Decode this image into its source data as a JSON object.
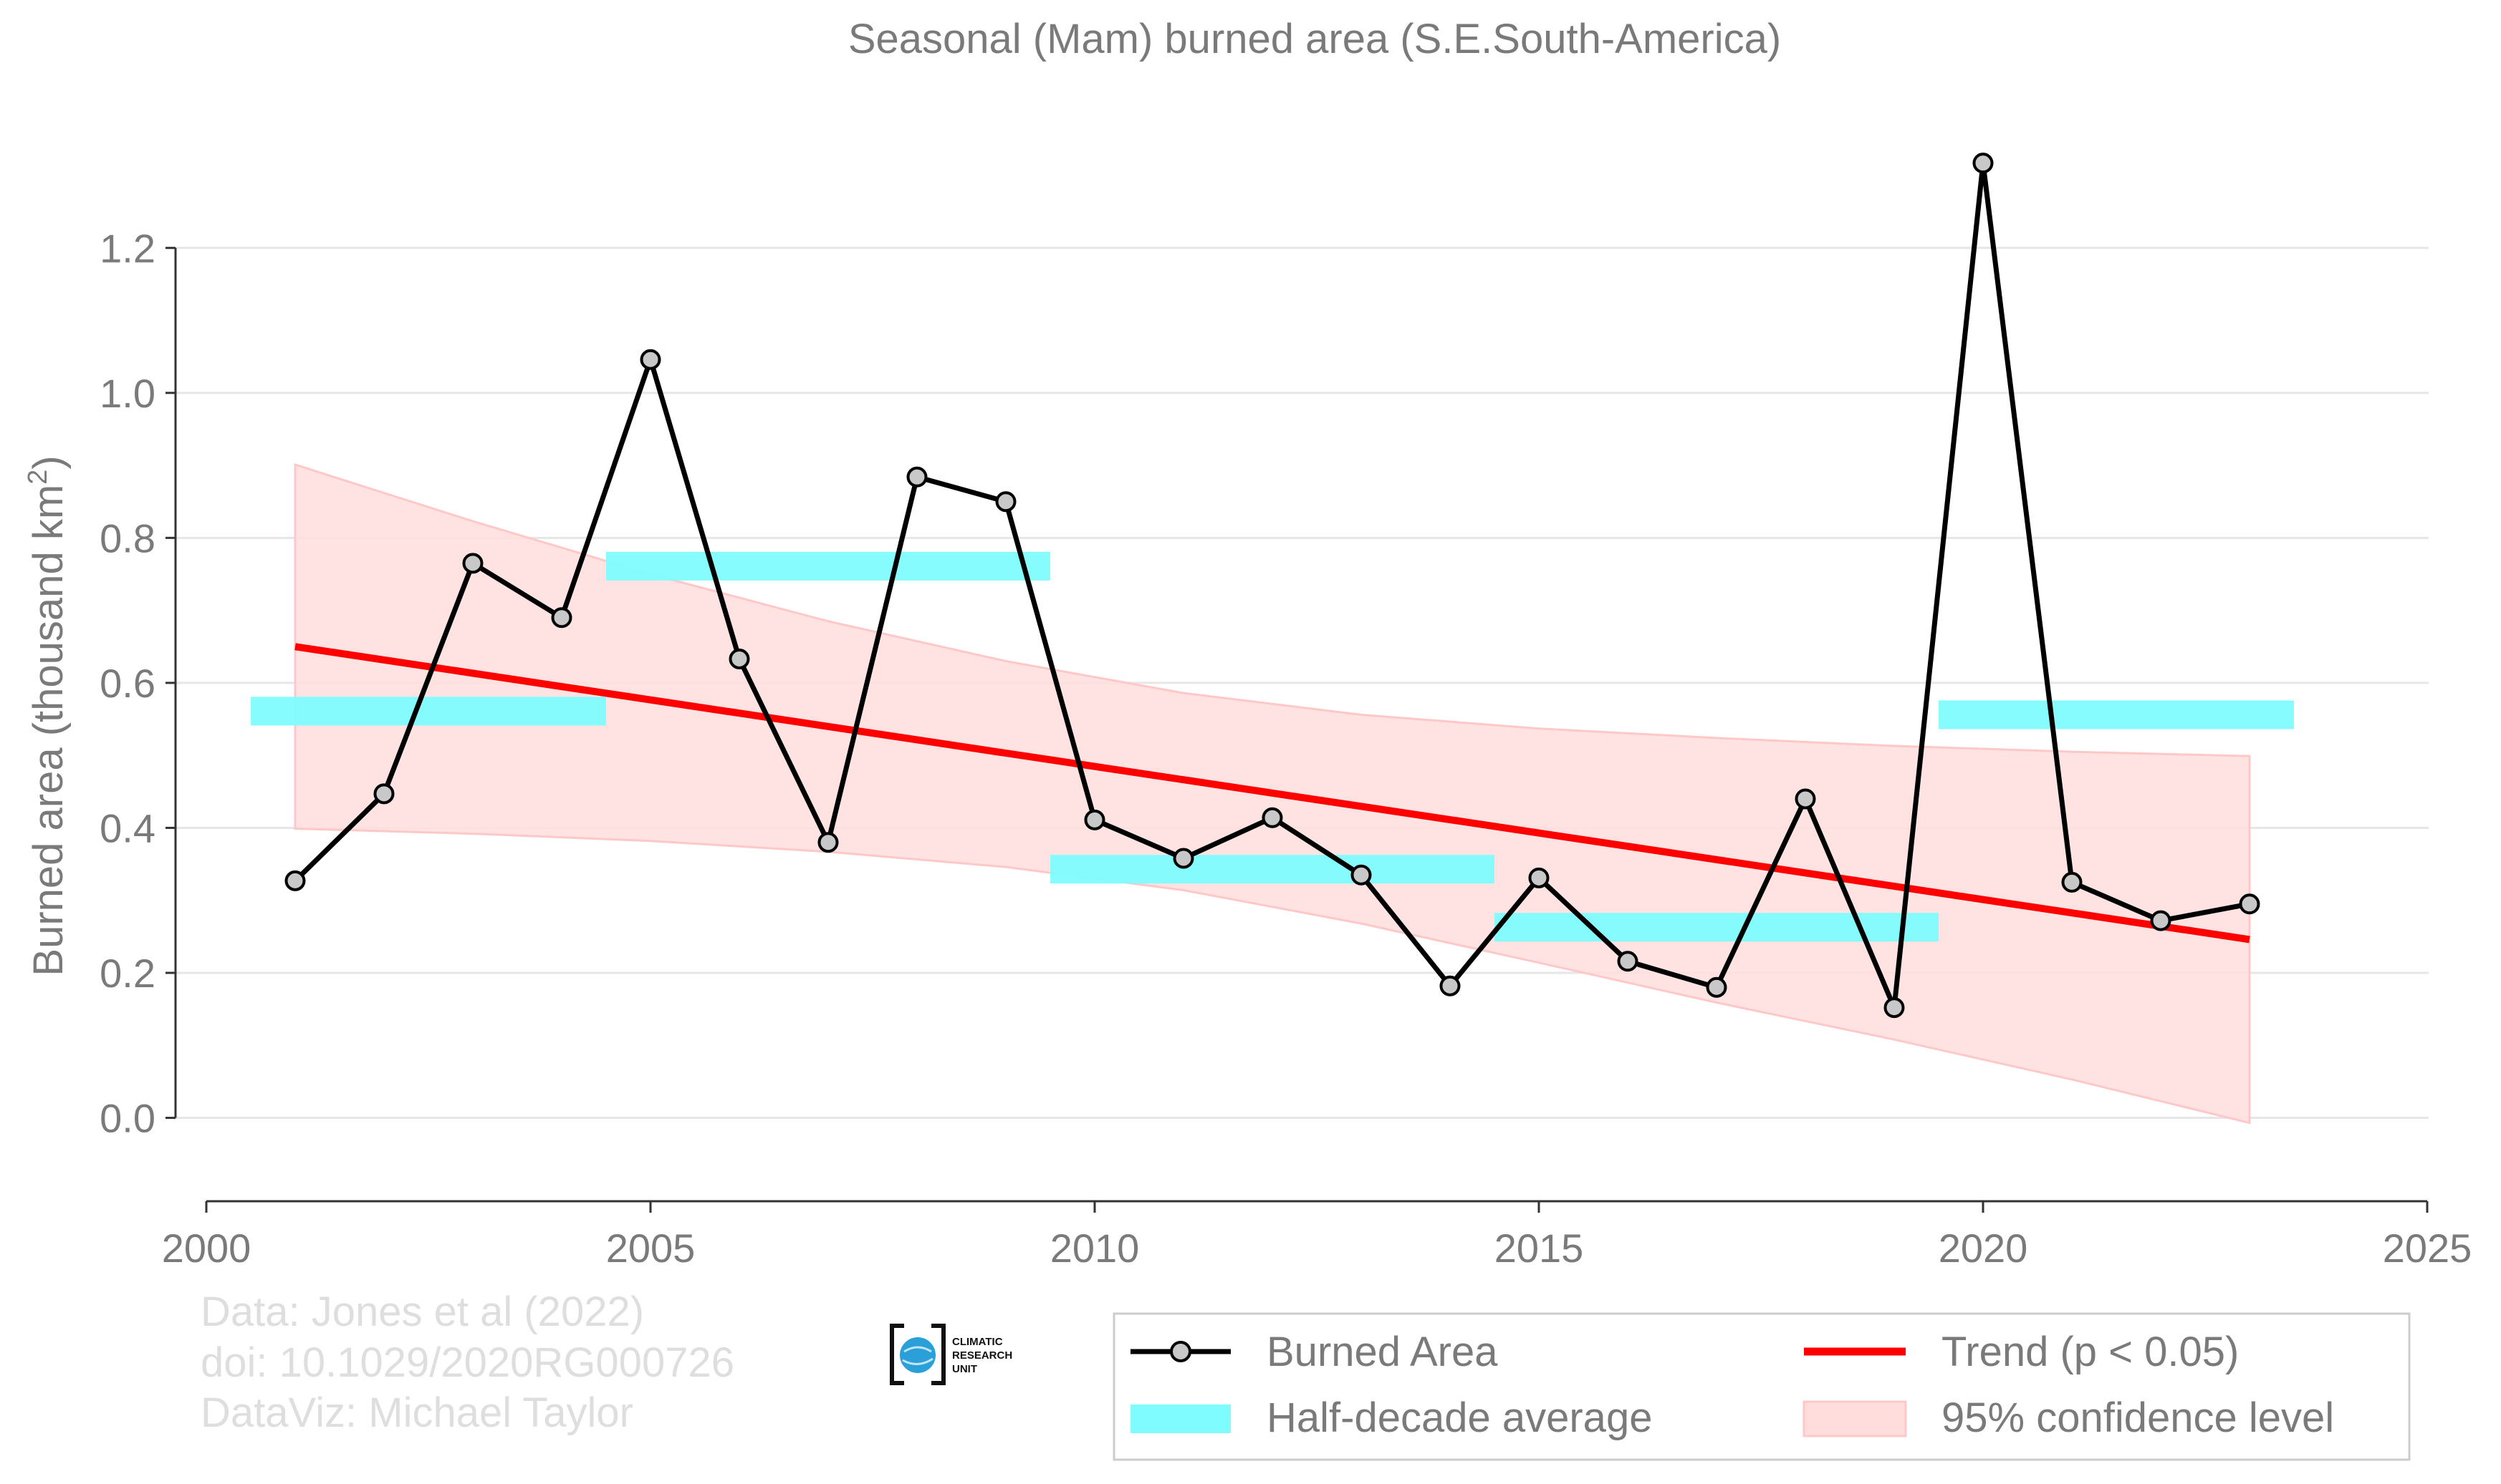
{
  "chart_data": {
    "type": "line",
    "title": "Seasonal (Mam) burned area (S.E.South-America)",
    "xlabel": "",
    "ylabel": "Burned area (thousand km",
    "ylabel_superscript": "2",
    "ylabel_suffix": ")",
    "xlim": [
      2000,
      2025
    ],
    "ylim": [
      -0.115,
      1.38
    ],
    "x_ticks": [
      2000,
      2005,
      2010,
      2015,
      2020,
      2025
    ],
    "y_ticks": [
      0.0,
      0.2,
      0.4,
      0.6,
      0.8,
      1.0,
      1.2
    ],
    "y_tick_labels": [
      "0.0",
      "0.2",
      "0.4",
      "0.6",
      "0.8",
      "1.0",
      "1.2"
    ],
    "grid": "horizontal",
    "legend_position": "bottom-right",
    "series": [
      {
        "name": "Burned Area",
        "color": "#000000",
        "marker_fill": "#c8c8c8",
        "x": [
          2001,
          2002,
          2003,
          2004,
          2005,
          2006,
          2007,
          2008,
          2009,
          2010,
          2011,
          2012,
          2013,
          2014,
          2015,
          2016,
          2017,
          2018,
          2019,
          2020,
          2021,
          2022,
          2023
        ],
        "values": [
          0.327,
          0.447,
          0.765,
          0.69,
          1.046,
          0.633,
          0.38,
          0.884,
          0.85,
          0.411,
          0.358,
          0.414,
          0.335,
          0.182,
          0.331,
          0.216,
          0.18,
          0.44,
          0.152,
          1.317,
          0.325,
          0.272,
          0.295
        ]
      },
      {
        "name": "Half-decade average",
        "color": "#7ffcff",
        "segments": [
          {
            "x_start": 2000.5,
            "x_end": 2004.5,
            "value": 0.561
          },
          {
            "x_start": 2004.5,
            "x_end": 2009.5,
            "value": 0.761
          },
          {
            "x_start": 2009.5,
            "x_end": 2014.5,
            "value": 0.343
          },
          {
            "x_start": 2014.5,
            "x_end": 2019.5,
            "value": 0.263
          },
          {
            "x_start": 2019.5,
            "x_end": 2023.5,
            "value": 0.556
          }
        ]
      },
      {
        "name": "Trend (p < 0.05)",
        "color": "#ff0000",
        "x": [
          2001,
          2023
        ],
        "values": [
          0.65,
          0.246
        ]
      },
      {
        "name": "95% confidence level",
        "color": "#ffdddd",
        "x": [
          2001,
          2003,
          2005,
          2007,
          2009,
          2011,
          2013,
          2015,
          2017,
          2019,
          2021,
          2023
        ],
        "upper": [
          0.901,
          0.823,
          0.75,
          0.685,
          0.63,
          0.586,
          0.556,
          0.537,
          0.524,
          0.513,
          0.505,
          0.499
        ],
        "lower": [
          0.399,
          0.392,
          0.382,
          0.367,
          0.346,
          0.314,
          0.268,
          0.214,
          0.159,
          0.108,
          0.053,
          -0.007
        ]
      }
    ]
  },
  "credits": {
    "line1": "Data: Jones et al (2022)",
    "line2": "doi: 10.1029/2020RG000726",
    "line3": "DataViz: Michael Taylor"
  },
  "logo": {
    "line1": "CLIMATIC",
    "line2": "RESEARCH",
    "line3": "UNIT"
  },
  "legend": {
    "burned_area": "Burned Area",
    "half_decade": "Half-decade average",
    "trend": "Trend (p < 0.05)",
    "confidence": "95% confidence level"
  },
  "colors": {
    "burned_area_line": "#000000",
    "marker_fill": "#c8c8c8",
    "half_decade": "#7ffcff",
    "trend": "#ff0000",
    "confidence_fill": "#ffdddd",
    "confidence_edge": "#ffc8c8",
    "grid": "#e6e6e6",
    "text": "#7a7a7a",
    "credit_text": "#dedede"
  }
}
